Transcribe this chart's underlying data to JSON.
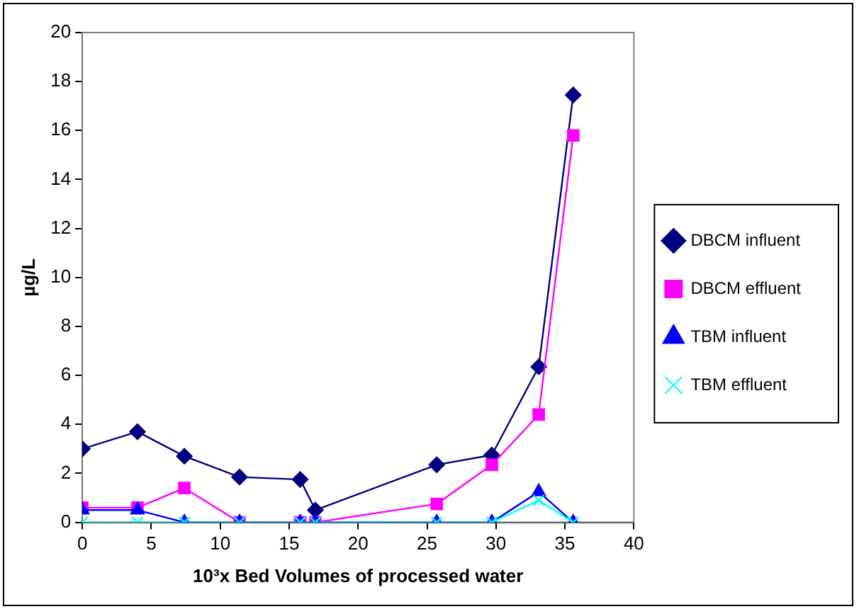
{
  "chart_data": {
    "type": "line",
    "xlabel": "10³x Bed Volumes of processed water",
    "ylabel": "µg/L",
    "x": [
      0,
      4,
      7.4,
      11.4,
      15.8,
      16.9,
      25.7,
      29.7,
      33.1,
      35.6
    ],
    "xlim": [
      0,
      40
    ],
    "xticks": [
      0,
      5,
      10,
      15,
      20,
      25,
      30,
      35,
      40
    ],
    "ylim": [
      0,
      20
    ],
    "yticks": [
      0,
      2,
      4,
      6,
      8,
      10,
      12,
      14,
      16,
      18,
      20
    ],
    "grid": false,
    "legend": "right",
    "series": [
      {
        "name": "DBCM influent",
        "color": "#000080",
        "marker": "diamond",
        "values": [
          3.0,
          3.7,
          2.7,
          1.85,
          1.75,
          0.5,
          2.35,
          2.75,
          6.35,
          17.45
        ]
      },
      {
        "name": "DBCM effluent",
        "color": "#ff00ff",
        "marker": "square",
        "values": [
          0.6,
          0.6,
          1.4,
          0,
          0,
          0,
          0.75,
          2.35,
          4.4,
          15.8
        ]
      },
      {
        "name": "TBM influent",
        "color": "#0000ff",
        "marker": "triangle",
        "values": [
          0.5,
          0.5,
          0,
          0,
          0,
          0,
          0,
          0,
          1.25,
          0
        ]
      },
      {
        "name": "TBM effluent",
        "color": "#00ffff",
        "marker": "cross",
        "values": [
          0,
          0,
          0,
          0,
          0,
          0,
          0,
          0,
          0.9,
          0
        ]
      }
    ]
  }
}
